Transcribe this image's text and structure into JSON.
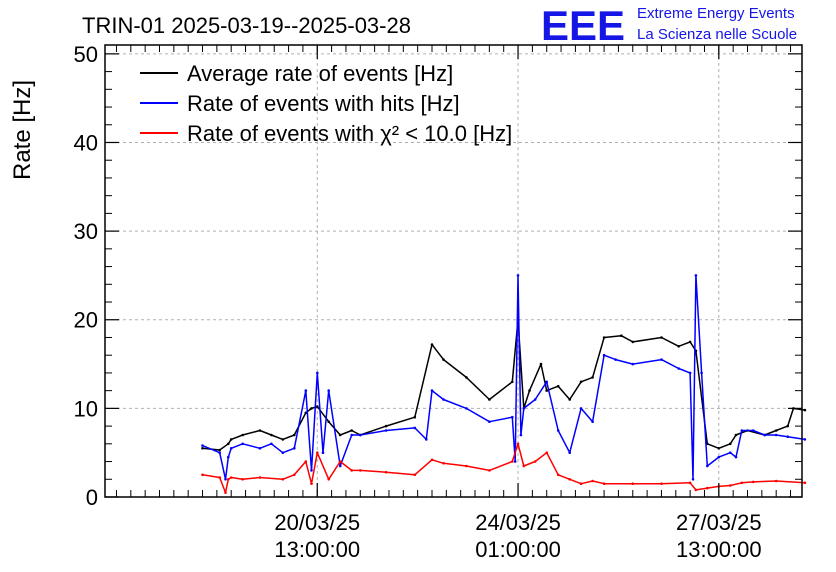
{
  "header": {
    "title": "TRIN-01 2025-03-19--2025-03-28",
    "logo_text": "EEE",
    "brand_line1": "Extreme Energy Events",
    "brand_line2": "La Scienza nelle Scuole",
    "brand_color": "#1515e6"
  },
  "chart_data": {
    "type": "line",
    "title": "TRIN-01 2025-03-19--2025-03-28",
    "xlabel": "",
    "ylabel": "Rate [Hz]",
    "ylim": [
      0,
      51
    ],
    "xlim": [
      -1.7,
      10.45
    ],
    "yticks": [
      0,
      10,
      20,
      30,
      40,
      50
    ],
    "xticks": [
      {
        "x": 2.0,
        "label_date": "20/03/25",
        "label_time": "13:00:00"
      },
      {
        "x": 5.5,
        "label_date": "24/03/25",
        "label_time": "01:00:00"
      },
      {
        "x": 9.0,
        "label_date": "27/03/25",
        "label_time": "13:00:00"
      }
    ],
    "grid": true,
    "legend_position": "top-left",
    "series": [
      {
        "name": "Average rate of events [Hz]",
        "color": "#000000",
        "x": [
          0.0,
          0.3,
          0.45,
          0.5,
          0.7,
          1.0,
          1.2,
          1.4,
          1.6,
          1.8,
          1.9,
          2.0,
          2.2,
          2.4,
          2.6,
          2.75,
          3.2,
          3.7,
          4.0,
          4.2,
          4.6,
          5.0,
          5.4,
          5.5,
          5.6,
          5.7,
          5.9,
          6.0,
          6.2,
          6.4,
          6.6,
          6.8,
          7.0,
          7.3,
          7.5,
          8.0,
          8.3,
          8.5,
          8.6,
          8.8,
          9.0,
          9.2,
          9.3,
          9.5,
          9.8,
          10.0,
          10.2,
          10.3,
          10.5
        ],
        "y": [
          5.5,
          5.3,
          6.0,
          6.5,
          7.0,
          7.5,
          7.0,
          6.5,
          7.0,
          9.5,
          10.0,
          10.2,
          8.5,
          7.0,
          7.5,
          7.0,
          8.0,
          9.0,
          17.2,
          15.5,
          13.5,
          11.0,
          13.0,
          20.0,
          10.0,
          12.0,
          15.0,
          12.0,
          12.5,
          11.0,
          13.0,
          13.5,
          18.0,
          18.2,
          17.5,
          18.0,
          17.0,
          17.5,
          16.5,
          6.0,
          5.5,
          6.0,
          7.0,
          7.5,
          7.0,
          7.5,
          8.0,
          10.0,
          9.8
        ]
      },
      {
        "name": "Rate of events with hits [Hz]",
        "color": "#0000ff",
        "x": [
          0.0,
          0.3,
          0.4,
          0.45,
          0.5,
          0.7,
          1.0,
          1.2,
          1.4,
          1.6,
          1.8,
          1.9,
          2.0,
          2.1,
          2.2,
          2.4,
          2.6,
          2.75,
          3.2,
          3.7,
          3.9,
          4.0,
          4.2,
          4.6,
          5.0,
          5.4,
          5.45,
          5.5,
          5.55,
          5.6,
          5.8,
          6.0,
          6.2,
          6.4,
          6.6,
          6.8,
          7.0,
          7.2,
          7.5,
          8.0,
          8.3,
          8.5,
          8.55,
          8.6,
          8.7,
          8.8,
          9.0,
          9.2,
          9.3,
          9.4,
          9.6,
          9.8,
          10.0,
          10.2,
          10.5
        ],
        "y": [
          5.8,
          5.0,
          2.0,
          4.5,
          5.5,
          6.0,
          5.5,
          6.0,
          5.0,
          5.5,
          12.0,
          3.0,
          14.0,
          5.0,
          12.0,
          3.5,
          7.0,
          7.0,
          7.5,
          7.8,
          6.5,
          12.0,
          11.0,
          10.0,
          8.5,
          9.0,
          4.0,
          25.0,
          7.0,
          10.0,
          11.0,
          13.0,
          7.5,
          5.0,
          10.0,
          8.5,
          16.0,
          15.5,
          15.0,
          15.5,
          14.5,
          14.0,
          2.0,
          25.0,
          14.0,
          3.5,
          4.5,
          5.0,
          4.5,
          7.5,
          7.5,
          7.0,
          7.0,
          6.8,
          6.5
        ]
      },
      {
        "name": "Rate of events with χ² < 10.0 [Hz]",
        "color": "#ff0000",
        "x": [
          0.0,
          0.3,
          0.4,
          0.45,
          0.5,
          0.7,
          1.0,
          1.4,
          1.6,
          1.8,
          1.9,
          2.0,
          2.2,
          2.4,
          2.6,
          2.75,
          3.2,
          3.7,
          4.0,
          4.2,
          4.6,
          5.0,
          5.4,
          5.5,
          5.6,
          5.8,
          6.0,
          6.2,
          6.4,
          6.6,
          6.8,
          7.0,
          7.5,
          8.0,
          8.5,
          8.6,
          8.8,
          9.0,
          9.2,
          9.4,
          9.6,
          10.0,
          10.5
        ],
        "y": [
          2.5,
          2.2,
          0.5,
          2.0,
          2.2,
          2.0,
          2.2,
          2.0,
          2.5,
          4.0,
          1.5,
          5.0,
          2.0,
          4.0,
          3.0,
          3.0,
          2.8,
          2.5,
          4.2,
          3.8,
          3.5,
          3.0,
          4.0,
          6.0,
          3.5,
          4.0,
          5.0,
          2.5,
          2.0,
          1.5,
          1.8,
          1.5,
          1.5,
          1.5,
          1.6,
          0.8,
          1.0,
          1.2,
          1.3,
          1.6,
          1.7,
          1.8,
          1.6
        ]
      }
    ]
  }
}
